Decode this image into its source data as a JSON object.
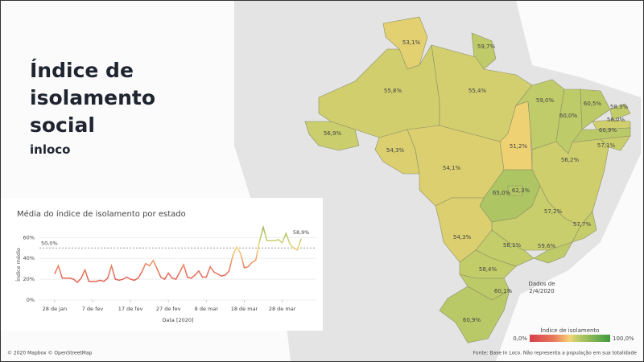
{
  "header": {
    "title": "Índice de isolamento social",
    "subtitle": "inloco"
  },
  "colorscale": [
    {
      "value": 0,
      "color": "#d6404a"
    },
    {
      "value": 30,
      "color": "#e9785c"
    },
    {
      "value": 50,
      "color": "#f6d275"
    },
    {
      "value": 58,
      "color": "#c3cd6a"
    },
    {
      "value": 100,
      "color": "#3f9a3d"
    }
  ],
  "chart_data": {
    "type": "line",
    "title": "Média do índice de isolamento por estado",
    "x_label": "Data [2020]",
    "y_label": "Índice médio",
    "x": [
      "2020-01-28",
      "2020-01-29",
      "2020-01-30",
      "2020-01-31",
      "2020-02-01",
      "2020-02-02",
      "2020-02-03",
      "2020-02-04",
      "2020-02-05",
      "2020-02-06",
      "2020-02-07",
      "2020-02-08",
      "2020-02-09",
      "2020-02-10",
      "2020-02-11",
      "2020-02-12",
      "2020-02-13",
      "2020-02-14",
      "2020-02-15",
      "2020-02-16",
      "2020-02-17",
      "2020-02-18",
      "2020-02-19",
      "2020-02-20",
      "2020-02-21",
      "2020-02-22",
      "2020-02-23",
      "2020-02-24",
      "2020-02-25",
      "2020-02-26",
      "2020-02-27",
      "2020-02-28",
      "2020-02-29",
      "2020-03-01",
      "2020-03-02",
      "2020-03-03",
      "2020-03-04",
      "2020-03-05",
      "2020-03-06",
      "2020-03-07",
      "2020-03-08",
      "2020-03-09",
      "2020-03-10",
      "2020-03-11",
      "2020-03-12",
      "2020-03-13",
      "2020-03-14",
      "2020-03-15",
      "2020-03-16",
      "2020-03-17",
      "2020-03-18",
      "2020-03-19",
      "2020-03-20",
      "2020-03-21",
      "2020-03-22",
      "2020-03-23",
      "2020-03-24",
      "2020-03-25",
      "2020-03-26",
      "2020-03-27",
      "2020-03-28",
      "2020-03-29",
      "2020-03-30",
      "2020-03-31",
      "2020-04-01",
      "2020-04-02"
    ],
    "series": [
      {
        "name": "Índice médio",
        "values": [
          25,
          33,
          21,
          21,
          21,
          20,
          17,
          21,
          29,
          18,
          18,
          18,
          19,
          18,
          21,
          33,
          20,
          19,
          20,
          22,
          20,
          19,
          21,
          27,
          35,
          33,
          38,
          30,
          22,
          20,
          26,
          21,
          20,
          27,
          34,
          22,
          21,
          24,
          28,
          22,
          22,
          32,
          27,
          25,
          23,
          24,
          28,
          43,
          51,
          45,
          31,
          32,
          36,
          38,
          56,
          70,
          57,
          57,
          57,
          58,
          55,
          64,
          54,
          50,
          48,
          58.9
        ],
        "value_labels": [
          null,
          null,
          null,
          null,
          null,
          null,
          null,
          null,
          null,
          null,
          null,
          null,
          null,
          null,
          null,
          null,
          null,
          null,
          null,
          null,
          null,
          null,
          null,
          null,
          null,
          null,
          null,
          null,
          null,
          null,
          null,
          null,
          null,
          null,
          null,
          null,
          null,
          null,
          null,
          null,
          null,
          null,
          null,
          null,
          null,
          null,
          null,
          null,
          null,
          null,
          null,
          null,
          null,
          null,
          null,
          null,
          null,
          null,
          null,
          null,
          null,
          null,
          null,
          null,
          null,
          "58,9%"
        ]
      }
    ],
    "xlim": [
      "2020-01-24",
      "2020-04-06"
    ],
    "xticks": [
      {
        "value": "2020-01-28",
        "label": "28 de jan"
      },
      {
        "value": "2020-02-07",
        "label": "7 de fev"
      },
      {
        "value": "2020-02-17",
        "label": "17 de fev"
      },
      {
        "value": "2020-02-27",
        "label": "27 de fev"
      },
      {
        "value": "2020-03-08",
        "label": "8 de mar"
      },
      {
        "value": "2020-03-18",
        "label": "18 de mar"
      },
      {
        "value": "2020-03-28",
        "label": "28 de mar"
      }
    ],
    "ylim": [
      0,
      68
    ],
    "yticks": [
      {
        "value": 0,
        "label": "0%"
      },
      {
        "value": 20,
        "label": "20%"
      },
      {
        "value": 40,
        "label": "40%"
      },
      {
        "value": 60,
        "label": "60%"
      }
    ],
    "reference_line": {
      "value": 50,
      "label": "50,0%"
    }
  },
  "map": {
    "regions": [
      {
        "value": 53.1,
        "value_label": "53,1%"
      },
      {
        "value": 59.7,
        "value_label": "59,7%"
      },
      {
        "value": 55.8,
        "value_label": "55,8%"
      },
      {
        "value": 56.9,
        "value_label": "56,9%"
      },
      {
        "value": 55.4,
        "value_label": "55,4%"
      },
      {
        "value": 54.3,
        "value_label": "54,3%"
      },
      {
        "value": 54.1,
        "value_label": "54,1%"
      },
      {
        "value": 51.2,
        "value_label": "51,2%"
      },
      {
        "value": 59.0,
        "value_label": "59,0%"
      },
      {
        "value": 60.0,
        "value_label": "60,0%"
      },
      {
        "value": 60.5,
        "value_label": "60,5%"
      },
      {
        "value": 58.3,
        "value_label": "58,3%"
      },
      {
        "value": 56.0,
        "value_label": "56,0%"
      },
      {
        "value": 60.9,
        "value_label": "60,9%"
      },
      {
        "value": 57.1,
        "value_label": "57,1%"
      },
      {
        "value": 56.2,
        "value_label": "56,2%"
      },
      {
        "value": 65.0,
        "value_label": "65,0%"
      },
      {
        "value": 62.3,
        "value_label": "62,3%"
      },
      {
        "value": 57.2,
        "value_label": "57,2%"
      },
      {
        "value": 57.7,
        "value_label": "57,7%"
      },
      {
        "value": 54.3,
        "value_label": "54,3%"
      },
      {
        "value": 58.1,
        "value_label": "58,1%"
      },
      {
        "value": 59.6,
        "value_label": "59,6%"
      },
      {
        "value": 58.4,
        "value_label": "58,4%"
      },
      {
        "value": 60.1,
        "value_label": "60,1%"
      },
      {
        "value": 60.9,
        "value_label": "60,9%"
      }
    ],
    "note": [
      "Dados de",
      "2/4/2020"
    ],
    "legend": {
      "title": "Índice de isolamento",
      "min": {
        "value": 0,
        "label": "0,0%"
      },
      "max": {
        "value": 100,
        "label": "100,0%"
      }
    },
    "attribution": "© 2020 Mapbox © OpenStreetMap",
    "source": "Fonte: Base In Loco. Não representa a população em sua totalidade"
  }
}
